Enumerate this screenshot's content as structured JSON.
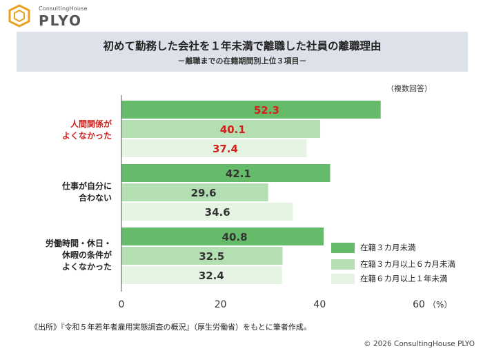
{
  "logo": {
    "top": "ConsultingHouse",
    "main": "PLYO"
  },
  "note": "（複数回答）",
  "legend_items": [
    {
      "label": "在籍３カ月未満",
      "color": "#66bb6a"
    },
    {
      "label": "在籍３カ月以上６カ月未満",
      "color": "#b3dfb3"
    },
    {
      "label": "在籍６カ月以上１年未満",
      "color": "#e6f4e4"
    }
  ],
  "category_labels": [
    {
      "lines": [
        "人間関係が",
        "よくなかった"
      ],
      "color": "#d0201b"
    },
    {
      "lines": [
        "仕事が自分に",
        "合わない"
      ],
      "color": "#222222"
    },
    {
      "lines": [
        "労働時間・休日・",
        "休暇の条件が",
        "よくなかった"
      ],
      "color": "#222222"
    }
  ],
  "source": "《出所》『令和５年若年者雇用実態調査の概況』（厚生労働省）をもとに筆者作成。",
  "copyright": "© 2026 ConsultingHouse PLYO",
  "chart_data": {
    "type": "bar",
    "orientation": "horizontal",
    "title": "初めて勤務した会社を１年未満で離職した社員の離職理由",
    "subtitle": "－離職までの在籍期間別上位３項目－",
    "categories": [
      "人間関係がよくなかった",
      "仕事が自分に合わない",
      "労働時間・休日・休暇の条件がよくなかった"
    ],
    "series": [
      {
        "name": "在籍３カ月未満",
        "values": [
          52.3,
          42.1,
          40.8
        ],
        "color": "#66bb6a"
      },
      {
        "name": "在籍３カ月以上６カ月未満",
        "values": [
          40.1,
          29.6,
          32.5
        ],
        "color": "#b3dfb3"
      },
      {
        "name": "在籍６カ月以上１年未満",
        "values": [
          37.4,
          34.6,
          32.4
        ],
        "color": "#e6f4e4"
      }
    ],
    "value_label_colors": [
      "#d0201b",
      "#333333",
      "#333333"
    ],
    "xlim": [
      0,
      60
    ],
    "xticks": [
      "0",
      "20",
      "40",
      "60"
    ],
    "xunit": "（%）",
    "grid": false,
    "legend_position": "bottom-right"
  }
}
